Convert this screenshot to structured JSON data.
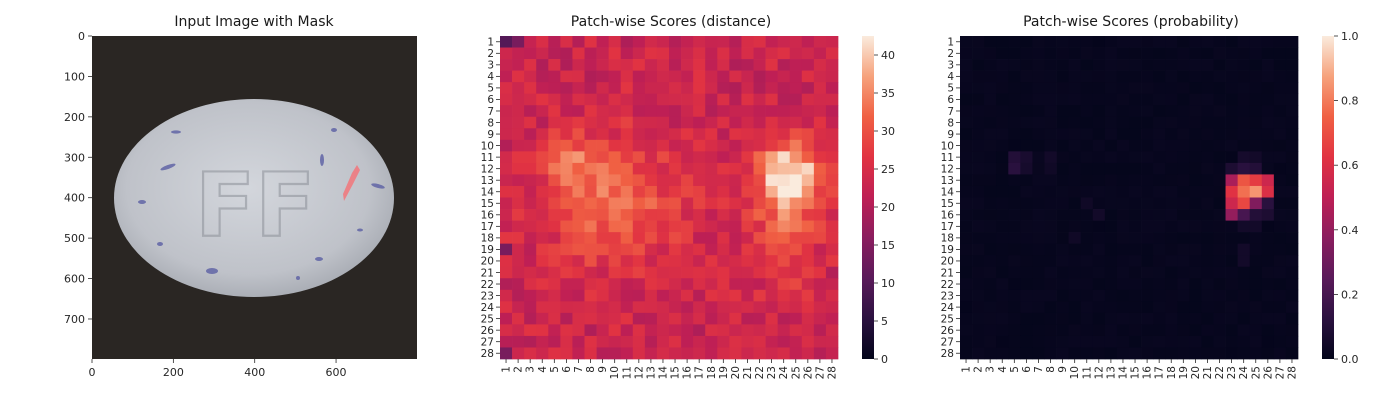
{
  "chart_data": [
    {
      "type": "image",
      "title": "Input Image with Mask",
      "x_ticks": [
        0,
        200,
        400,
        600
      ],
      "y_ticks": [
        0,
        100,
        200,
        300,
        400,
        500,
        600,
        700
      ],
      "xlim": [
        0,
        799
      ],
      "ylim": [
        799,
        0
      ],
      "embossed_text": "FF",
      "colors": {
        "background": "#2a2623",
        "pill": "#b9bdc3",
        "mask": "#f07a80",
        "specks": "#5b5fa4"
      }
    },
    {
      "type": "heatmap",
      "title": "Patch-wise Scores (distance)",
      "rows": [
        "1",
        "2",
        "3",
        "4",
        "5",
        "6",
        "7",
        "8",
        "9",
        "10",
        "11",
        "12",
        "13",
        "14",
        "15",
        "16",
        "17",
        "18",
        "19",
        "20",
        "21",
        "22",
        "23",
        "24",
        "25",
        "26",
        "27",
        "28"
      ],
      "cols": [
        "1",
        "2",
        "3",
        "4",
        "5",
        "6",
        "7",
        "8",
        "9",
        "10",
        "11",
        "12",
        "13",
        "14",
        "15",
        "16",
        "17",
        "18",
        "19",
        "20",
        "21",
        "22",
        "23",
        "24",
        "25",
        "26",
        "27",
        "28"
      ],
      "colorbar": {
        "min": 0,
        "max": 42.5,
        "ticks": [
          0,
          5,
          10,
          15,
          20,
          25,
          30,
          35,
          40
        ]
      },
      "colormap": "rocket",
      "base_value": 23,
      "hot_regions": [
        {
          "row": 12.5,
          "col": 24.5,
          "sigma_row": 2.2,
          "sigma_col": 2.0,
          "peak": 19
        },
        {
          "row": 15,
          "col": 10,
          "sigma_row": 4,
          "sigma_col": 4,
          "peak": 9
        },
        {
          "row": 11.5,
          "col": 6.5,
          "sigma_row": 1.5,
          "sigma_col": 1.8,
          "peak": 7
        },
        {
          "row": 18,
          "col": 24,
          "sigma_row": 3,
          "sigma_col": 2,
          "peak": 7
        }
      ]
    },
    {
      "type": "heatmap",
      "title": "Patch-wise Scores (probability)",
      "rows": [
        "1",
        "2",
        "3",
        "4",
        "5",
        "6",
        "7",
        "8",
        "9",
        "10",
        "11",
        "12",
        "13",
        "14",
        "15",
        "16",
        "17",
        "18",
        "19",
        "20",
        "21",
        "22",
        "23",
        "24",
        "25",
        "26",
        "27",
        "28"
      ],
      "cols": [
        "1",
        "2",
        "3",
        "4",
        "5",
        "6",
        "7",
        "8",
        "9",
        "10",
        "11",
        "12",
        "13",
        "14",
        "15",
        "16",
        "17",
        "18",
        "19",
        "20",
        "21",
        "22",
        "23",
        "24",
        "25",
        "26",
        "27",
        "28"
      ],
      "colorbar": {
        "min": 0.0,
        "max": 1.0,
        "ticks": [
          0.0,
          0.2,
          0.4,
          0.6,
          0.8,
          1.0
        ]
      },
      "colormap": "rocket",
      "cells": [
        {
          "row": 13,
          "col": 23,
          "value": 0.45
        },
        {
          "row": 13,
          "col": 24,
          "value": 0.72
        },
        {
          "row": 13,
          "col": 25,
          "value": 0.65
        },
        {
          "row": 13,
          "col": 26,
          "value": 0.55
        },
        {
          "row": 14,
          "col": 23,
          "value": 0.62
        },
        {
          "row": 14,
          "col": 24,
          "value": 0.78
        },
        {
          "row": 14,
          "col": 25,
          "value": 0.85
        },
        {
          "row": 14,
          "col": 26,
          "value": 0.6
        },
        {
          "row": 15,
          "col": 23,
          "value": 0.55
        },
        {
          "row": 15,
          "col": 24,
          "value": 0.68
        },
        {
          "row": 15,
          "col": 25,
          "value": 0.35
        },
        {
          "row": 15,
          "col": 26,
          "value": 0.12
        },
        {
          "row": 16,
          "col": 23,
          "value": 0.4
        },
        {
          "row": 16,
          "col": 24,
          "value": 0.2
        },
        {
          "row": 16,
          "col": 25,
          "value": 0.1
        },
        {
          "row": 16,
          "col": 26,
          "value": 0.08
        },
        {
          "row": 12,
          "col": 23,
          "value": 0.08
        },
        {
          "row": 12,
          "col": 24,
          "value": 0.12
        },
        {
          "row": 12,
          "col": 25,
          "value": 0.1
        },
        {
          "row": 11,
          "col": 24,
          "value": 0.06
        },
        {
          "row": 11,
          "col": 25,
          "value": 0.05
        },
        {
          "row": 17,
          "col": 24,
          "value": 0.05
        },
        {
          "row": 17,
          "col": 25,
          "value": 0.05
        },
        {
          "row": 11,
          "col": 5,
          "value": 0.1
        },
        {
          "row": 12,
          "col": 5,
          "value": 0.12
        },
        {
          "row": 11,
          "col": 6,
          "value": 0.07
        },
        {
          "row": 12,
          "col": 6,
          "value": 0.06
        },
        {
          "row": 11,
          "col": 8,
          "value": 0.05
        },
        {
          "row": 12,
          "col": 8,
          "value": 0.04
        },
        {
          "row": 15,
          "col": 11,
          "value": 0.04
        },
        {
          "row": 16,
          "col": 12,
          "value": 0.05
        },
        {
          "row": 18,
          "col": 10,
          "value": 0.04
        },
        {
          "row": 19,
          "col": 24,
          "value": 0.05
        },
        {
          "row": 20,
          "col": 24,
          "value": 0.05
        }
      ]
    }
  ]
}
